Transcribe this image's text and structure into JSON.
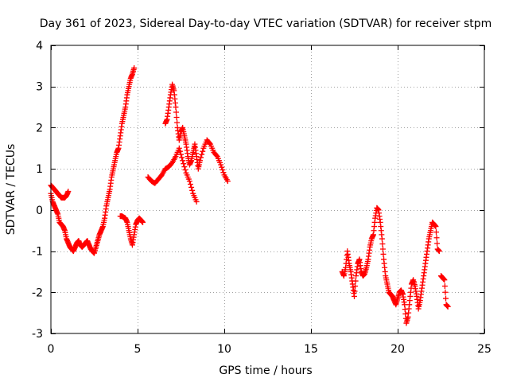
{
  "chart_data": {
    "type": "scatter",
    "title": "Day 361 of 2023, Sidereal Day-to-day VTEC variation (SDTVAR) for receiver stpm",
    "xlabel": "GPS time / hours",
    "ylabel": "SDTVAR / TECUs",
    "xlim": [
      0,
      25
    ],
    "ylim": [
      -3,
      4
    ],
    "x_ticks": [
      0,
      5,
      10,
      15,
      20,
      25
    ],
    "y_ticks": [
      -3,
      -2,
      -1,
      0,
      1,
      2,
      3,
      4
    ],
    "grid": true,
    "marker": "+",
    "series": [
      {
        "name": "SDTVAR",
        "color": "#ff0000",
        "segments": [
          {
            "x": [
              0.0,
              0.1,
              0.2,
              0.3,
              0.4,
              0.5,
              0.6,
              0.7,
              0.8,
              0.9,
              1.0
            ],
            "y": [
              0.6,
              0.55,
              0.5,
              0.45,
              0.4,
              0.35,
              0.3,
              0.3,
              0.3,
              0.35,
              0.45
            ]
          },
          {
            "x": [
              0.0,
              0.1,
              0.2,
              0.3,
              0.4,
              0.5,
              0.6,
              0.7,
              0.8,
              0.9,
              1.0,
              1.1,
              1.2,
              1.3,
              1.4,
              1.5,
              1.6,
              1.7,
              1.8,
              1.9,
              2.0,
              2.1,
              2.2,
              2.3,
              2.4,
              2.5,
              2.6,
              2.7,
              2.8,
              2.9,
              3.0,
              3.1,
              3.2,
              3.3,
              3.4,
              3.5,
              3.6,
              3.7,
              3.8,
              3.9,
              4.0,
              4.1,
              4.2,
              4.3,
              4.4,
              4.5,
              4.6,
              4.7,
              4.8
            ],
            "y": [
              0.4,
              0.2,
              0.1,
              0.0,
              -0.1,
              -0.3,
              -0.35,
              -0.4,
              -0.5,
              -0.7,
              -0.8,
              -0.9,
              -0.95,
              -1.0,
              -0.9,
              -0.8,
              -0.75,
              -0.85,
              -0.9,
              -0.85,
              -0.8,
              -0.75,
              -0.85,
              -0.95,
              -1.0,
              -1.05,
              -0.9,
              -0.75,
              -0.6,
              -0.5,
              -0.4,
              -0.2,
              0.1,
              0.3,
              0.5,
              0.8,
              1.0,
              1.2,
              1.4,
              1.5,
              1.8,
              2.1,
              2.3,
              2.5,
              2.8,
              3.0,
              3.2,
              3.3,
              3.45
            ]
          },
          {
            "x": [
              4.0,
              4.1,
              4.2,
              4.3,
              4.4,
              4.5,
              4.6,
              4.7,
              4.8,
              4.9,
              5.0,
              5.1,
              5.2,
              5.3
            ],
            "y": [
              -0.15,
              -0.15,
              -0.18,
              -0.2,
              -0.3,
              -0.5,
              -0.7,
              -0.85,
              -0.6,
              -0.35,
              -0.25,
              -0.2,
              -0.25,
              -0.3
            ]
          },
          {
            "x": [
              5.6,
              5.8,
              6.0,
              6.2,
              6.4,
              6.6,
              6.8,
              7.0,
              7.2,
              7.4,
              7.6,
              7.8,
              8.0,
              8.2,
              8.4
            ],
            "y": [
              0.8,
              0.7,
              0.65,
              0.75,
              0.85,
              1.0,
              1.05,
              1.15,
              1.3,
              1.5,
              1.2,
              0.9,
              0.7,
              0.4,
              0.2
            ]
          },
          {
            "x": [
              6.6,
              6.7,
              6.8,
              6.9,
              7.0,
              7.1,
              7.2,
              7.3,
              7.4,
              7.5,
              7.6,
              7.7,
              7.8,
              7.9,
              8.0,
              8.1,
              8.2,
              8.3,
              8.4,
              8.5,
              8.6,
              8.8,
              9.0,
              9.2,
              9.4,
              9.6,
              9.8,
              10.0,
              10.2
            ],
            "y": [
              2.1,
              2.2,
              2.5,
              2.8,
              3.05,
              2.9,
              2.5,
              2.0,
              1.7,
              1.9,
              2.0,
              1.8,
              1.6,
              1.3,
              1.1,
              1.2,
              1.4,
              1.6,
              1.3,
              1.0,
              1.2,
              1.5,
              1.7,
              1.6,
              1.4,
              1.3,
              1.1,
              0.85,
              0.7
            ]
          },
          {
            "x": [
              16.8,
              16.9,
              17.0,
              17.1,
              17.2,
              17.3,
              17.4,
              17.5,
              17.6,
              17.7,
              17.8,
              17.9,
              18.0,
              18.1,
              18.2,
              18.3,
              18.4,
              18.5,
              18.6,
              18.7,
              18.8,
              18.9,
              19.0,
              19.1,
              19.2,
              19.3,
              19.4,
              19.5,
              19.6,
              19.7,
              19.8,
              19.9,
              20.0,
              20.1,
              20.2,
              20.3,
              20.4,
              20.5,
              20.6,
              20.7,
              20.8,
              20.9,
              21.0,
              21.1,
              21.2,
              21.3,
              21.4,
              21.5,
              21.6,
              21.7,
              21.8,
              21.9,
              22.0,
              22.1,
              22.2,
              22.3,
              22.4
            ],
            "y": [
              -1.5,
              -1.6,
              -1.4,
              -1.0,
              -1.3,
              -1.5,
              -1.8,
              -2.1,
              -1.6,
              -1.3,
              -1.2,
              -1.5,
              -1.6,
              -1.55,
              -1.4,
              -1.2,
              -0.9,
              -0.7,
              -0.6,
              -0.2,
              0.05,
              0.0,
              -0.3,
              -0.7,
              -1.2,
              -1.6,
              -1.8,
              -2.0,
              -2.05,
              -2.1,
              -2.2,
              -2.3,
              -2.15,
              -2.0,
              -1.95,
              -2.05,
              -2.3,
              -2.75,
              -2.6,
              -2.2,
              -1.8,
              -1.7,
              -1.85,
              -2.1,
              -2.4,
              -2.2,
              -1.9,
              -1.6,
              -1.3,
              -1.0,
              -0.7,
              -0.5,
              -0.3,
              -0.35,
              -0.4,
              -0.95,
              -1.0
            ]
          },
          {
            "x": [
              22.5,
              22.6,
              22.7,
              22.8,
              22.9
            ],
            "y": [
              -1.6,
              -1.65,
              -1.7,
              -2.3,
              -2.35
            ]
          }
        ]
      }
    ]
  }
}
